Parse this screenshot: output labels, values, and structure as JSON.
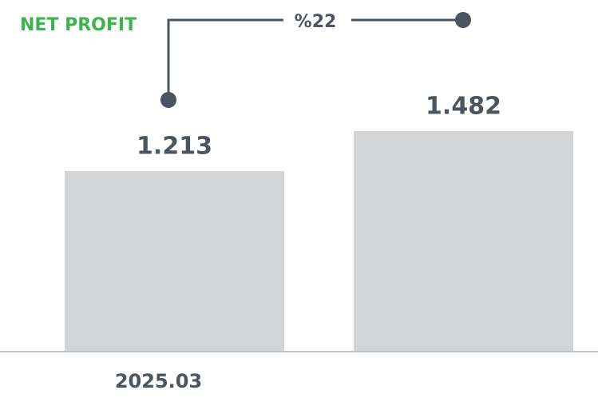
{
  "chart_data": {
    "type": "bar",
    "title": "NET PROFIT",
    "annotation": "%22",
    "categories": [
      "2025.03",
      null
    ],
    "values": [
      1.213,
      1.482
    ],
    "color": "#d3d4d6"
  }
}
